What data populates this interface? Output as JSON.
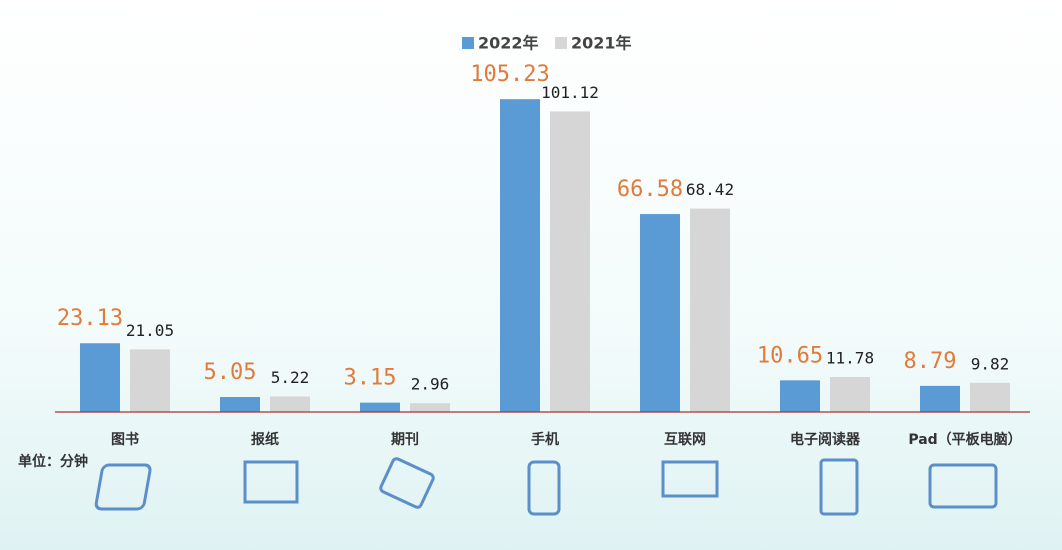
{
  "chart_data": {
    "type": "bar",
    "categories": [
      "图书",
      "报纸",
      "期刊",
      "手机",
      "互联网",
      "电子阅读器",
      "Pad（平板电脑）"
    ],
    "series": [
      {
        "name": "2022年",
        "color": "#5b9bd5",
        "label_color": "#e07b39",
        "values": [
          23.13,
          5.05,
          3.15,
          105.23,
          66.58,
          10.65,
          8.79
        ]
      },
      {
        "name": "2021年",
        "color": "#d6d6d6",
        "label_color": "#222222",
        "values": [
          21.05,
          5.22,
          2.96,
          101.12,
          68.42,
          11.78,
          9.82
        ]
      }
    ],
    "ylim": [
      0,
      110
    ],
    "unit_note": "单位：分钟"
  }
}
